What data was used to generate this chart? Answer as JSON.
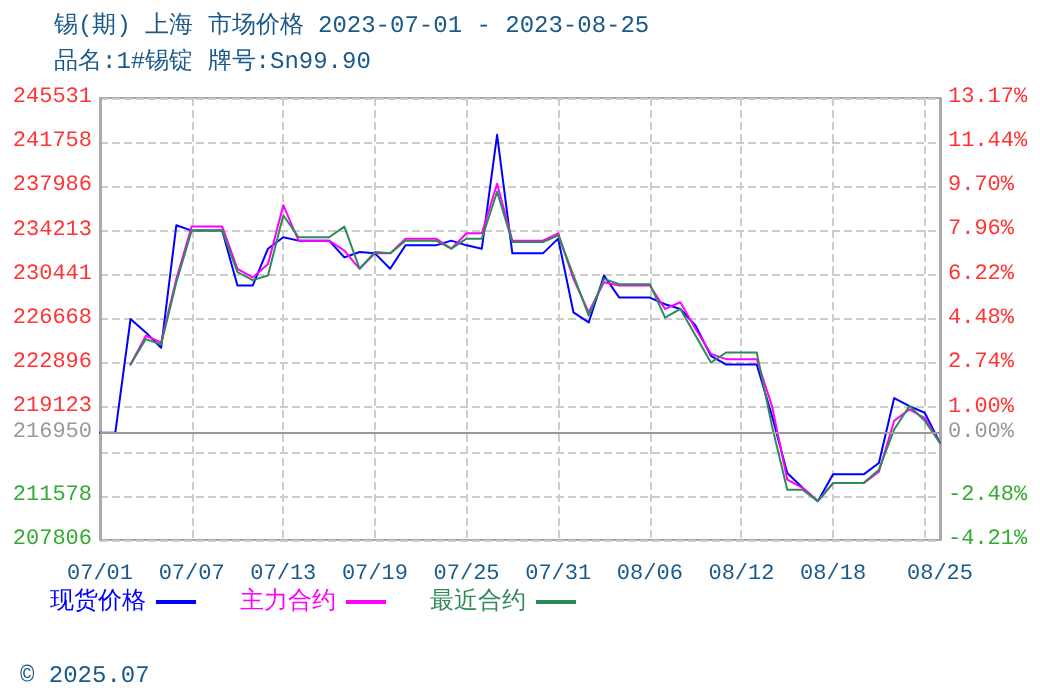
{
  "chart_data": {
    "type": "line",
    "title": "锡(期) 上海 市场价格 2023-07-01 - 2023-08-25",
    "subtitle": "品名:1#锡锭 牌号:Sn99.90",
    "annotations": [
      "© 2025.07"
    ],
    "x": [
      "2023-07-01",
      "2023-07-02",
      "2023-07-03",
      "2023-07-04",
      "2023-07-05",
      "2023-07-06",
      "2023-07-07",
      "2023-07-08",
      "2023-07-09",
      "2023-07-10",
      "2023-07-11",
      "2023-07-12",
      "2023-07-13",
      "2023-07-14",
      "2023-07-15",
      "2023-07-16",
      "2023-07-17",
      "2023-07-18",
      "2023-07-19",
      "2023-07-20",
      "2023-07-21",
      "2023-07-22",
      "2023-07-23",
      "2023-07-24",
      "2023-07-25",
      "2023-07-26",
      "2023-07-27",
      "2023-07-28",
      "2023-07-29",
      "2023-07-30",
      "2023-07-31",
      "2023-08-01",
      "2023-08-02",
      "2023-08-03",
      "2023-08-04",
      "2023-08-05",
      "2023-08-06",
      "2023-08-07",
      "2023-08-08",
      "2023-08-09",
      "2023-08-10",
      "2023-08-11",
      "2023-08-12",
      "2023-08-13",
      "2023-08-14",
      "2023-08-15",
      "2023-08-16",
      "2023-08-17",
      "2023-08-18",
      "2023-08-19",
      "2023-08-20",
      "2023-08-21",
      "2023-08-22",
      "2023-08-23",
      "2023-08-24",
      "2023-08-25"
    ],
    "series": [
      {
        "name": "现货价格",
        "color": "#0000ff",
        "values": [
          216950,
          216950,
          226668,
          225525,
          224210,
          234671,
          234213,
          234213,
          234213,
          229526,
          229526,
          232670,
          233642,
          233356,
          233356,
          233356,
          231927,
          232384,
          232270,
          230955,
          232956,
          232956,
          232956,
          233356,
          232956,
          232670,
          242387,
          232270,
          232270,
          232270,
          233528,
          227240,
          226382,
          230384,
          228497,
          228497,
          228497,
          227926,
          227526,
          226097,
          223525,
          222782,
          222782,
          222782,
          218380,
          213522,
          212264,
          211121,
          213408,
          213408,
          213408,
          214379,
          219923,
          219237,
          218665,
          216093
        ]
      },
      {
        "name": "主力合约",
        "color": "#ff00ff",
        "values": [
          null,
          null,
          222782,
          225239,
          224667,
          230098,
          234557,
          234557,
          234557,
          230955,
          230212,
          231355,
          236385,
          233356,
          233356,
          233356,
          232499,
          230955,
          232270,
          232270,
          233528,
          233528,
          233528,
          232670,
          233985,
          233985,
          238214,
          233356,
          233356,
          233356,
          233985,
          230098,
          227240,
          229812,
          229526,
          229526,
          229526,
          227526,
          228097,
          225811,
          223696,
          223239,
          223239,
          223239,
          219237,
          212950,
          212264,
          211121,
          212664,
          212664,
          212664,
          213636,
          217980,
          218952,
          218208,
          216093
        ]
      },
      {
        "name": "最近合约",
        "color": "#2e8b57",
        "values": [
          null,
          null,
          222782,
          224953,
          224496,
          229812,
          234213,
          234213,
          234213,
          230670,
          229983,
          230384,
          235528,
          233642,
          233642,
          233642,
          234557,
          230955,
          232384,
          232270,
          233356,
          233356,
          233356,
          232670,
          233528,
          233528,
          237528,
          233242,
          233242,
          233242,
          233813,
          230384,
          226954,
          230098,
          229641,
          229641,
          229641,
          226782,
          227526,
          225239,
          222953,
          223810,
          223810,
          223810,
          217523,
          212093,
          212093,
          211121,
          212664,
          212664,
          212664,
          213808,
          217237,
          219237,
          217980,
          216093
        ]
      }
    ],
    "xlim": [
      "2023-07-01",
      "2023-08-25"
    ],
    "xticks": [
      {
        "value": "2023-07-01",
        "label": "07/01"
      },
      {
        "value": "2023-07-07",
        "label": "07/07"
      },
      {
        "value": "2023-07-13",
        "label": "07/13"
      },
      {
        "value": "2023-07-19",
        "label": "07/19"
      },
      {
        "value": "2023-07-25",
        "label": "07/25"
      },
      {
        "value": "2023-07-31",
        "label": "07/31"
      },
      {
        "value": "2023-08-06",
        "label": "08/06"
      },
      {
        "value": "2023-08-12",
        "label": "08/12"
      },
      {
        "value": "2023-08-18",
        "label": "08/18"
      },
      {
        "value": "2023-08-24",
        "label": null
      },
      {
        "value": "2023-08-25",
        "label": "08/25"
      }
    ],
    "ylim": [
      207806,
      245531
    ],
    "yticks": [
      207806,
      211578,
      {
        "value": 215351,
        "label": null
      },
      216950,
      219123,
      222896,
      226668,
      230441,
      234213,
      237986,
      241758,
      245531
    ],
    "y2lim": [
      -4.21,
      13.17
    ],
    "y2ticks": [
      {
        "value": -4.21,
        "label": "-4.21%"
      },
      {
        "value": -2.48,
        "label": "-2.48%"
      },
      {
        "value": 0,
        "label": "0.00%"
      },
      {
        "value": 1,
        "label": "1.00%"
      },
      {
        "value": 2.74,
        "label": "2.74%"
      },
      {
        "value": 4.48,
        "label": "4.48%"
      },
      {
        "value": 6.22,
        "label": "6.22%"
      },
      {
        "value": 7.96,
        "label": "7.96%"
      },
      {
        "value": 9.7,
        "label": "9.70%"
      },
      {
        "value": 11.44,
        "label": "11.44%"
      },
      {
        "value": 13.17,
        "label": "13.17%"
      }
    ],
    "ref_lines": [
      {
        "axis": "y",
        "value": 216950,
        "color": "#999999"
      }
    ],
    "grid": true,
    "legend": "bottom",
    "marker": "none",
    "line_style": "solid"
  }
}
